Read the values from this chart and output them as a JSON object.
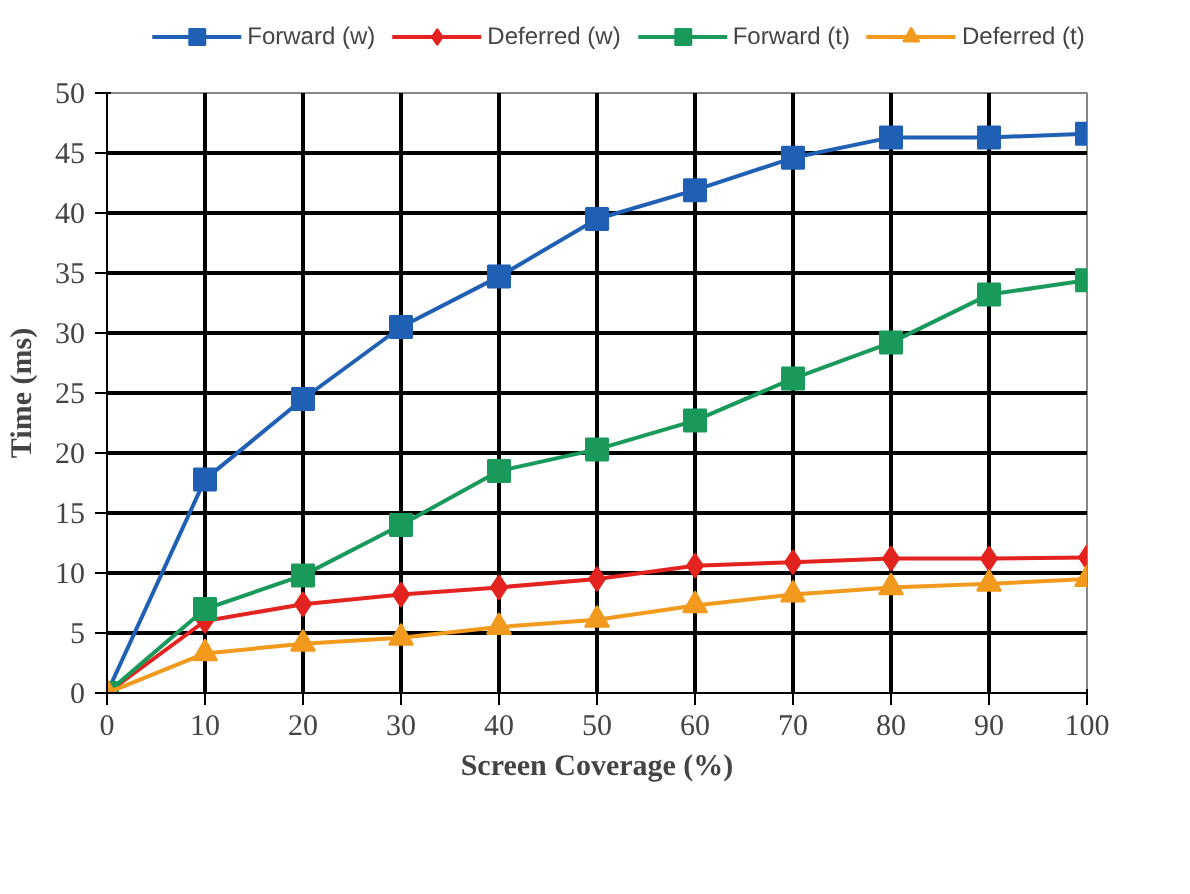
{
  "chart_data": {
    "type": "line",
    "xlabel": "Screen Coverage (%)",
    "ylabel": "Time (ms)",
    "x": [
      0,
      10,
      20,
      30,
      40,
      50,
      60,
      70,
      80,
      90,
      100
    ],
    "xlim": [
      0,
      100
    ],
    "xticks": [
      0,
      10,
      20,
      30,
      40,
      50,
      60,
      70,
      80,
      90,
      100
    ],
    "ylim": [
      0,
      50
    ],
    "yticks": [
      0,
      5,
      10,
      15,
      20,
      25,
      30,
      35,
      40,
      45,
      50
    ],
    "grid": true,
    "legend": "top",
    "line_style": "solid",
    "series": [
      {
        "name": "Forward (w)",
        "color": "#1f5fb4",
        "marker": "square",
        "values": [
          0,
          17.8,
          24.5,
          30.5,
          34.7,
          39.5,
          41.9,
          44.6,
          46.3,
          46.3,
          46.6
        ]
      },
      {
        "name": "Deferred (w)",
        "color": "#e3231f",
        "marker": "diamond",
        "values": [
          0,
          6.0,
          7.4,
          8.2,
          8.8,
          9.5,
          10.6,
          10.9,
          11.2,
          11.2,
          11.3
        ]
      },
      {
        "name": "Forward (t)",
        "color": "#1a9a5a",
        "marker": "square",
        "values": [
          0,
          7.0,
          9.8,
          14.0,
          18.5,
          20.3,
          22.7,
          26.2,
          29.2,
          33.2,
          34.4
        ]
      },
      {
        "name": "Deferred (t)",
        "color": "#f29a1e",
        "marker": "triangle",
        "values": [
          0,
          3.3,
          4.1,
          4.6,
          5.5,
          6.1,
          7.3,
          8.2,
          8.8,
          9.1,
          9.5
        ]
      }
    ]
  }
}
